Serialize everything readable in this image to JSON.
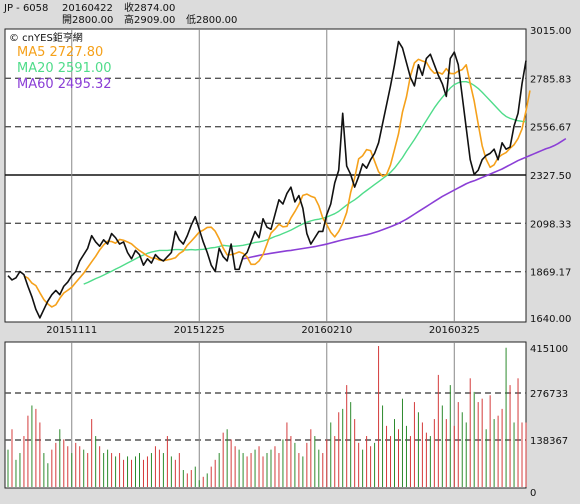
{
  "header": {
    "symbol": "JP - 6058",
    "date": "20160422",
    "close": "收2874.00",
    "open": "開2800.00",
    "high": "高2909.00",
    "low": "低2800.00"
  },
  "watermark": "© cnYES鉅亨網",
  "legend": [
    {
      "text": "MA5 2727.80",
      "color": "#f5a11b"
    },
    {
      "text": "MA20 2591.00",
      "color": "#4fdc8a"
    },
    {
      "text": "MA60 2495.32",
      "color": "#8b3fd6"
    }
  ],
  "colors": {
    "price": "#111111",
    "ma5": "#f5a11b",
    "ma20": "#4fdc8a",
    "ma60": "#8b3fd6",
    "volume_up": "#d43a3a",
    "volume_down": "#2d8a2d",
    "background": "#dcdcdc",
    "panel": "#ffffff"
  },
  "chart_data": [
    {
      "type": "line",
      "y_ticks": [
        "3015.00",
        "2785.83",
        "2556.67",
        "2327.50",
        "2098.33",
        "1869.17",
        "1640.00"
      ],
      "ylim": [
        1640,
        3015
      ],
      "x_ticks": [
        "20151111",
        "20151225",
        "20160210",
        "20160325"
      ],
      "x_tick_index": [
        16,
        48,
        80,
        112
      ],
      "reference_line": 2327.5,
      "series": [
        {
          "key": "price",
          "values": [
            1850,
            1830,
            1840,
            1870,
            1855,
            1800,
            1750,
            1690,
            1650,
            1690,
            1730,
            1760,
            1780,
            1760,
            1800,
            1820,
            1850,
            1870,
            1920,
            1950,
            1980,
            2040,
            2010,
            1990,
            2020,
            2000,
            2050,
            2030,
            2000,
            2010,
            1960,
            1930,
            1970,
            1950,
            1900,
            1930,
            1910,
            1950,
            1930,
            1920,
            1940,
            1960,
            2060,
            2020,
            2000,
            2040,
            2090,
            2130,
            2070,
            2010,
            1960,
            1900,
            1870,
            1980,
            1940,
            1920,
            2000,
            1880,
            1880,
            1940,
            1960,
            2010,
            2060,
            2030,
            2120,
            2080,
            2070,
            2140,
            2210,
            2190,
            2240,
            2270,
            2200,
            2230,
            2170,
            2050,
            2000,
            2030,
            2060,
            2060,
            2140,
            2190,
            2290,
            2350,
            2620,
            2370,
            2330,
            2270,
            2320,
            2380,
            2360,
            2400,
            2430,
            2480,
            2570,
            2660,
            2750,
            2850,
            2960,
            2930,
            2860,
            2790,
            2750,
            2850,
            2800,
            2880,
            2900,
            2850,
            2800,
            2760,
            2700,
            2880,
            2910,
            2850,
            2700,
            2550,
            2400,
            2330,
            2350,
            2400,
            2420,
            2430,
            2450,
            2400,
            2480,
            2450,
            2460,
            2560,
            2620,
            2760,
            2870
          ]
        },
        {
          "key": "ma5",
          "start": 4,
          "values": [
            1849,
            1839,
            1815,
            1803,
            1769,
            1737,
            1716,
            1702,
            1712,
            1743,
            1768,
            1781,
            1795,
            1818,
            1840,
            1862,
            1889,
            1916,
            1942,
            1972,
            1996,
            2014,
            2012,
            2004,
            2022,
            2018,
            2010,
            2001,
            1984,
            1969,
            1957,
            1943,
            1934,
            1933,
            1924,
            1921,
            1925,
            1929,
            1935,
            1955,
            1967,
            1994,
            2014,
            2035,
            2057,
            2066,
            2079,
            2080,
            2061,
            2025,
            1981,
            1949,
            1950,
            1955,
            1963,
            1956,
            1939,
            1904,
            1904,
            1920,
            1950,
            2001,
            2052,
            2071,
            2094,
            2082,
            2084,
            2124,
            2154,
            2188,
            2231,
            2237,
            2227,
            2220,
            2182,
            2123,
            2092,
            2056,
            2034,
            2060,
            2098,
            2150,
            2245,
            2313,
            2404,
            2419,
            2448,
            2443,
            2393,
            2343,
            2322,
            2330,
            2376,
            2448,
            2522,
            2626,
            2698,
            2798,
            2859,
            2876,
            2868,
            2862,
            2830,
            2810,
            2814,
            2806,
            2832,
            2809,
            2808,
            2820,
            2827,
            2850,
            2761,
            2678,
            2570,
            2466,
            2402,
            2364,
            2376,
            2410,
            2424,
            2434,
            2454,
            2471,
            2500,
            2546,
            2632,
            2728
          ]
        },
        {
          "key": "ma20",
          "start": 19,
          "values": [
            1810,
            1818,
            1827,
            1836,
            1844,
            1853,
            1862,
            1871,
            1881,
            1890,
            1900,
            1910,
            1920,
            1930,
            1940,
            1948,
            1956,
            1962,
            1966,
            1970,
            1970,
            1970,
            1972,
            1974,
            1974,
            1972,
            1972,
            1974,
            1972,
            1974,
            1975,
            1978,
            1982,
            1984,
            1988,
            1994,
            1992,
            1990,
            1990,
            1992,
            1994,
            1998,
            2002,
            2008,
            2010,
            2014,
            2020,
            2028,
            2036,
            2042,
            2050,
            2058,
            2066,
            2076,
            2086,
            2096,
            2104,
            2110,
            2115,
            2118,
            2122,
            2128,
            2136,
            2144,
            2155,
            2170,
            2185,
            2198,
            2210,
            2224,
            2240,
            2254,
            2268,
            2282,
            2296,
            2310,
            2324,
            2340,
            2360,
            2384,
            2410,
            2440,
            2468,
            2496,
            2526,
            2556,
            2586,
            2616,
            2646,
            2672,
            2696,
            2718,
            2740,
            2756,
            2765,
            2770,
            2770,
            2764,
            2752,
            2738,
            2720,
            2700,
            2680,
            2660,
            2640,
            2620,
            2605,
            2596,
            2590,
            2585,
            2582,
            2580
          ]
        },
        {
          "key": "ma60",
          "start": 59,
          "values": [
            1930,
            1934,
            1938,
            1942,
            1946,
            1950,
            1953,
            1956,
            1959,
            1962,
            1965,
            1968,
            1970,
            1973,
            1976,
            1979,
            1982,
            1985,
            1988,
            1992,
            1996,
            2000,
            2005,
            2010,
            2015,
            2020,
            2024,
            2028,
            2032,
            2036,
            2040,
            2044,
            2049,
            2055,
            2061,
            2068,
            2075,
            2082,
            2090,
            2098,
            2108,
            2118,
            2130,
            2142,
            2154,
            2166,
            2178,
            2190,
            2202,
            2214,
            2226,
            2236,
            2246,
            2256,
            2266,
            2276,
            2286,
            2294,
            2300,
            2308,
            2316,
            2324,
            2332,
            2340,
            2348,
            2356,
            2366,
            2376,
            2386,
            2396,
            2404,
            2412,
            2420,
            2428,
            2436,
            2444,
            2452,
            2458,
            2466,
            2476,
            2488,
            2500
          ]
        }
      ]
    },
    {
      "type": "bar",
      "y_ticks": [
        "415100",
        "276733",
        "138367",
        "0"
      ],
      "ylim": [
        0,
        415100
      ],
      "values": [
        110000,
        170000,
        80000,
        100000,
        150000,
        210000,
        240000,
        230000,
        190000,
        100000,
        70000,
        110000,
        130000,
        170000,
        140000,
        120000,
        100000,
        130000,
        120000,
        110000,
        100000,
        200000,
        150000,
        120000,
        100000,
        110000,
        100000,
        90000,
        100000,
        80000,
        90000,
        80000,
        90000,
        100000,
        80000,
        90000,
        100000,
        120000,
        110000,
        100000,
        150000,
        90000,
        80000,
        100000,
        50000,
        40000,
        50000,
        60000,
        20000,
        30000,
        40000,
        60000,
        80000,
        100000,
        160000,
        170000,
        140000,
        120000,
        110000,
        100000,
        90000,
        100000,
        110000,
        120000,
        90000,
        100000,
        110000,
        120000,
        100000,
        140000,
        190000,
        150000,
        130000,
        100000,
        90000,
        130000,
        170000,
        150000,
        110000,
        100000,
        140000,
        190000,
        150000,
        220000,
        230000,
        300000,
        250000,
        200000,
        130000,
        110000,
        150000,
        120000,
        130000,
        420000,
        240000,
        180000,
        150000,
        200000,
        170000,
        260000,
        180000,
        150000,
        250000,
        220000,
        190000,
        160000,
        150000,
        200000,
        330000,
        240000,
        200000,
        300000,
        180000,
        250000,
        220000,
        190000,
        320000,
        280000,
        250000,
        260000,
        170000,
        270000,
        200000,
        210000,
        230000,
        410000,
        300000,
        190000,
        320000,
        190000,
        190000
      ],
      "up": [
        0,
        1,
        0,
        0,
        1,
        1,
        0,
        1,
        1,
        0,
        0,
        1,
        1,
        0,
        1,
        1,
        0,
        1,
        1,
        0,
        1,
        1,
        0,
        1,
        0,
        0,
        1,
        0,
        1,
        1,
        0,
        1,
        0,
        0,
        1,
        1,
        0,
        1,
        1,
        0,
        1,
        0,
        1,
        1,
        0,
        1,
        1,
        0,
        0,
        1,
        0,
        1,
        1,
        0,
        1,
        0,
        1,
        1,
        0,
        0,
        1,
        1,
        0,
        1,
        1,
        0,
        0,
        1,
        1,
        0,
        1,
        1,
        0,
        1,
        0,
        1,
        1,
        0,
        0,
        1,
        1,
        0,
        1,
        1,
        0,
        1,
        0,
        1,
        1,
        0,
        1,
        1,
        0,
        1,
        0,
        1,
        1,
        0,
        1,
        0,
        0,
        1,
        1,
        0,
        1,
        1,
        0,
        1,
        1,
        0,
        1,
        0,
        1,
        1,
        0,
        0,
        1,
        0,
        1,
        1,
        0,
        1,
        0,
        1,
        1,
        0,
        1,
        0,
        1,
        1,
        1
      ]
    }
  ]
}
